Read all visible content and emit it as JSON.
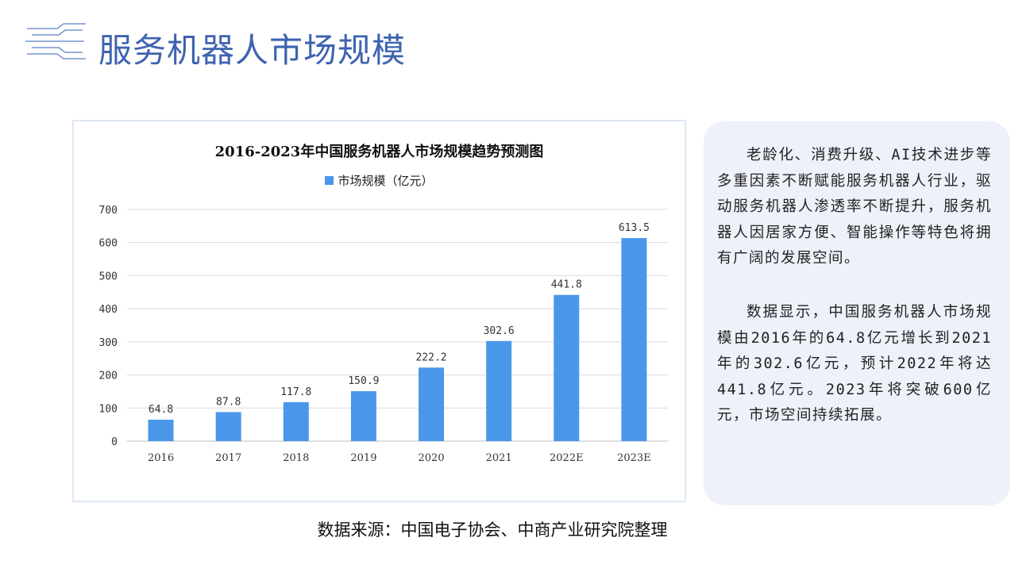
{
  "page": {
    "title": "服务机器人市场规模",
    "source": "数据来源：中国电子协会、中商产业研究院整理"
  },
  "text_panel": {
    "paragraphs": [
      "老龄化、消费升级、AI技术进步等多重因素不断赋能服务机器人行业，驱动服务机器人渗透率不断提升，服务机器人因居家方便、智能操作等特色将拥有广阔的发展空间。",
      "数据显示，中国服务机器人市场规模由2016年的64.8亿元增长到2021年的302.6亿元，预计2022年将达441.8亿元。2023年将突破600亿元，市场空间持续拓展。"
    ]
  },
  "chart_data": {
    "type": "bar",
    "title": "2016-2023年中国服务机器人市场规模趋势预测图",
    "categories": [
      "2016",
      "2017",
      "2018",
      "2019",
      "2020",
      "2021",
      "2022E",
      "2023E"
    ],
    "series": [
      {
        "name": "市场规模（亿元）",
        "values": [
          64.8,
          87.8,
          117.8,
          150.9,
          222.2,
          302.6,
          441.8,
          613.5
        ],
        "labels": [
          "64.8",
          "87.8",
          "117.8",
          "150.9",
          "222.2",
          "302.6",
          "441.8",
          "613.5"
        ]
      }
    ],
    "ylim": [
      0,
      700
    ],
    "yticks": [
      0,
      100,
      200,
      300,
      400,
      500,
      600,
      700
    ],
    "grid": true,
    "legend": "top-center",
    "bar_color": "#4a97ea"
  }
}
